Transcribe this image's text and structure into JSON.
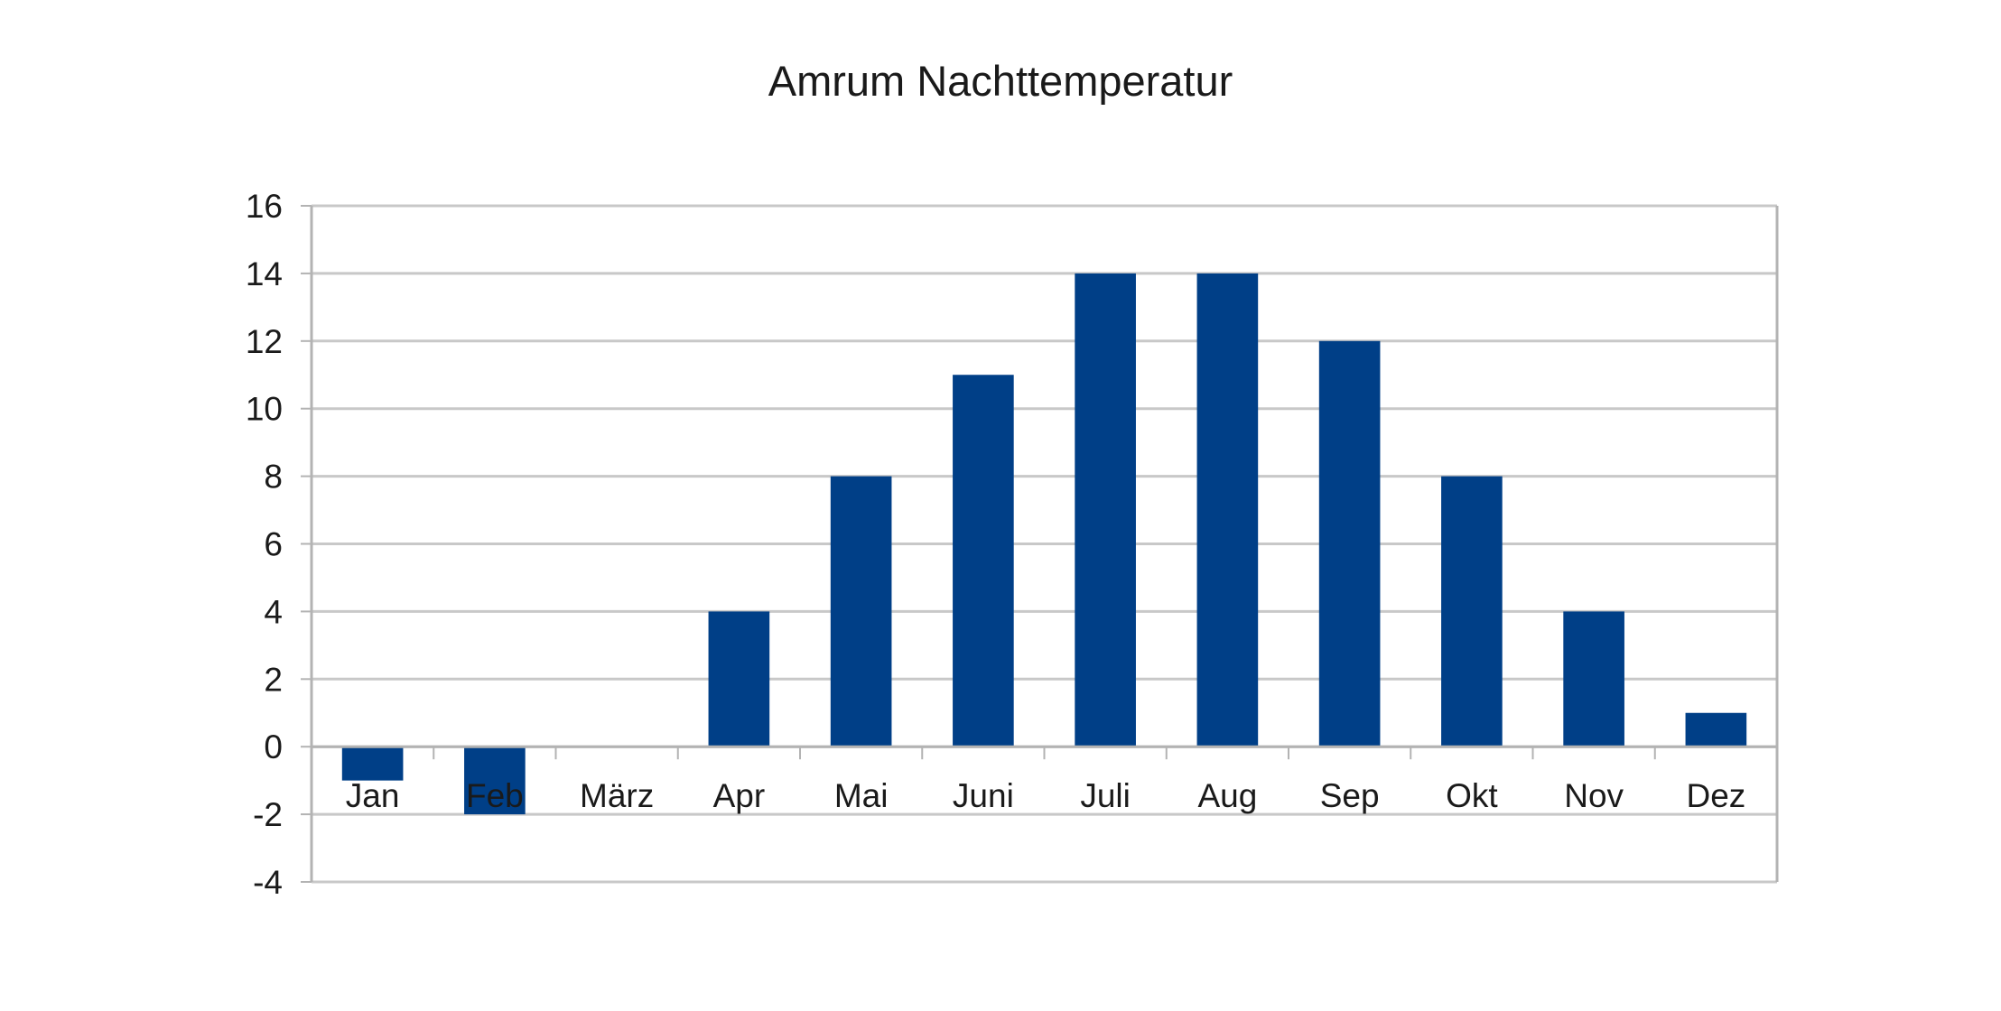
{
  "chart_data": {
    "type": "bar",
    "title": "Amrum Nachttemperatur",
    "xlabel": "",
    "ylabel": "",
    "categories": [
      "Jan",
      "Feb",
      "März",
      "Apr",
      "Mai",
      "Juni",
      "Juli",
      "Aug",
      "Sep",
      "Okt",
      "Nov",
      "Dez"
    ],
    "values": [
      -1,
      -2,
      0,
      4,
      8,
      11,
      14,
      14,
      12,
      8,
      4,
      1
    ],
    "ylim": [
      -4,
      16
    ],
    "yticks": [
      "-4",
      "-2",
      "0",
      "2",
      "4",
      "6",
      "8",
      "10",
      "12",
      "14",
      "16"
    ],
    "grid": true,
    "legend": "none",
    "bar_color": "#003f87",
    "grid_color": "#c8c8c8",
    "axis_color": "#b3b3b3"
  }
}
